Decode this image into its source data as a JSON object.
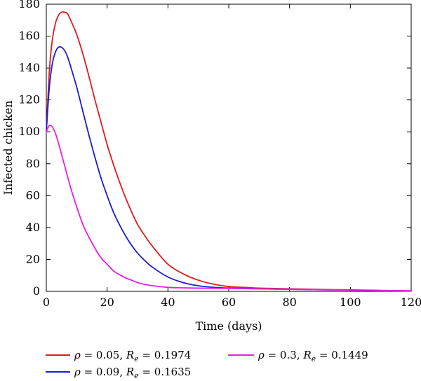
{
  "chart_data": {
    "type": "line",
    "title": "",
    "xlabel": "Time (days)",
    "ylabel": "Infected chicken",
    "xlim": [
      0,
      120
    ],
    "ylim": [
      0,
      180
    ],
    "xticks": [
      0,
      20,
      40,
      60,
      80,
      100,
      120
    ],
    "yticks": [
      0,
      20,
      40,
      60,
      80,
      100,
      120,
      140,
      160,
      180
    ],
    "grid": false,
    "legend_position": "bottom",
    "series": [
      {
        "name": "ρ = 0.05, Rₑ = 0.1974",
        "legend": {
          "rho_sym": "ρ",
          "rho_val": " = 0.05, ",
          "r_sym": "R",
          "r_sub": "e",
          "r_val": " = 0.1974"
        },
        "color": "#e41a1c",
        "x": [
          0,
          1,
          2,
          3,
          4,
          5,
          6,
          7,
          8,
          10,
          12,
          14,
          16,
          18,
          20,
          22,
          24,
          26,
          28,
          30,
          32,
          35,
          40,
          45,
          50,
          55,
          60,
          65,
          70,
          80,
          90,
          100,
          110,
          120
        ],
        "y": [
          100,
          138,
          158,
          168,
          173,
          175,
          175,
          174,
          170,
          161,
          149,
          135,
          120,
          106,
          92,
          80,
          69,
          59,
          50,
          42,
          36,
          28,
          17,
          11,
          7,
          4.5,
          3,
          2.5,
          2,
          1.6,
          1.2,
          0.9,
          0.6,
          0.3
        ]
      },
      {
        "name": "ρ = 0.09, Rₑ = 0.1635",
        "legend": {
          "rho_sym": "ρ",
          "rho_val": " = 0.09, ",
          "r_sym": "R",
          "r_sub": "e",
          "r_val": " = 0.1635"
        },
        "color": "#1a1adc",
        "x": [
          0,
          1,
          2,
          3,
          4,
          5,
          6,
          7,
          8,
          10,
          12,
          14,
          16,
          18,
          20,
          22,
          24,
          26,
          28,
          30,
          32,
          35,
          40,
          45,
          50,
          55,
          60,
          65,
          70,
          80,
          90,
          100,
          110,
          120
        ],
        "y": [
          100,
          128,
          143,
          150,
          153,
          153,
          151,
          147,
          141,
          128,
          113,
          98,
          84,
          71,
          60,
          50,
          42,
          35,
          29,
          24,
          20,
          15,
          9,
          5.5,
          3.5,
          2.5,
          2,
          1.8,
          1.6,
          1.3,
          1,
          0.8,
          0.5,
          0.3
        ]
      },
      {
        "name": "ρ = 0.3, Rₑ = 0.1449",
        "legend": {
          "rho_sym": "ρ",
          "rho_val": " = 0.3, ",
          "r_sym": "R",
          "r_sub": "e",
          "r_val": " = 0.1449"
        },
        "color": "#e81ee8",
        "x": [
          0,
          1,
          2,
          3,
          4,
          5,
          6,
          8,
          10,
          12,
          14,
          16,
          18,
          20,
          22,
          24,
          26,
          28,
          30,
          32,
          35,
          40,
          45,
          50,
          55,
          60,
          65,
          70,
          80,
          90,
          100,
          110,
          120
        ],
        "y": [
          100,
          104,
          103,
          99,
          93,
          86,
          79,
          65,
          53,
          42,
          34,
          27,
          21,
          17,
          13,
          10.5,
          8.5,
          7,
          5.5,
          4.5,
          3.5,
          2.5,
          2.2,
          2,
          1.9,
          1.8,
          1.7,
          1.6,
          1.3,
          1,
          0.8,
          0.5,
          0.3
        ]
      }
    ]
  }
}
